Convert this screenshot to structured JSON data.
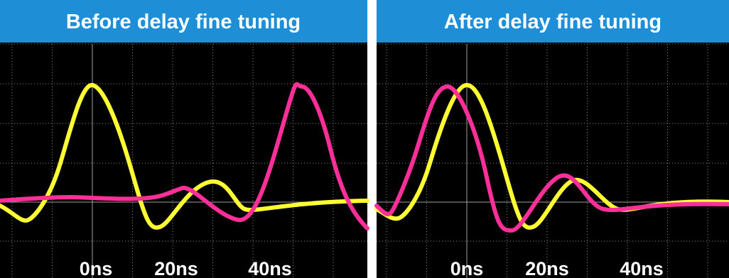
{
  "panels": [
    {
      "title": "Before delay fine tuning",
      "labels": [
        "0ns",
        "20ns",
        "40ns"
      ]
    },
    {
      "title": "After delay fine tuning",
      "labels": [
        "0ns",
        "20ns",
        "40ns"
      ]
    }
  ]
}
